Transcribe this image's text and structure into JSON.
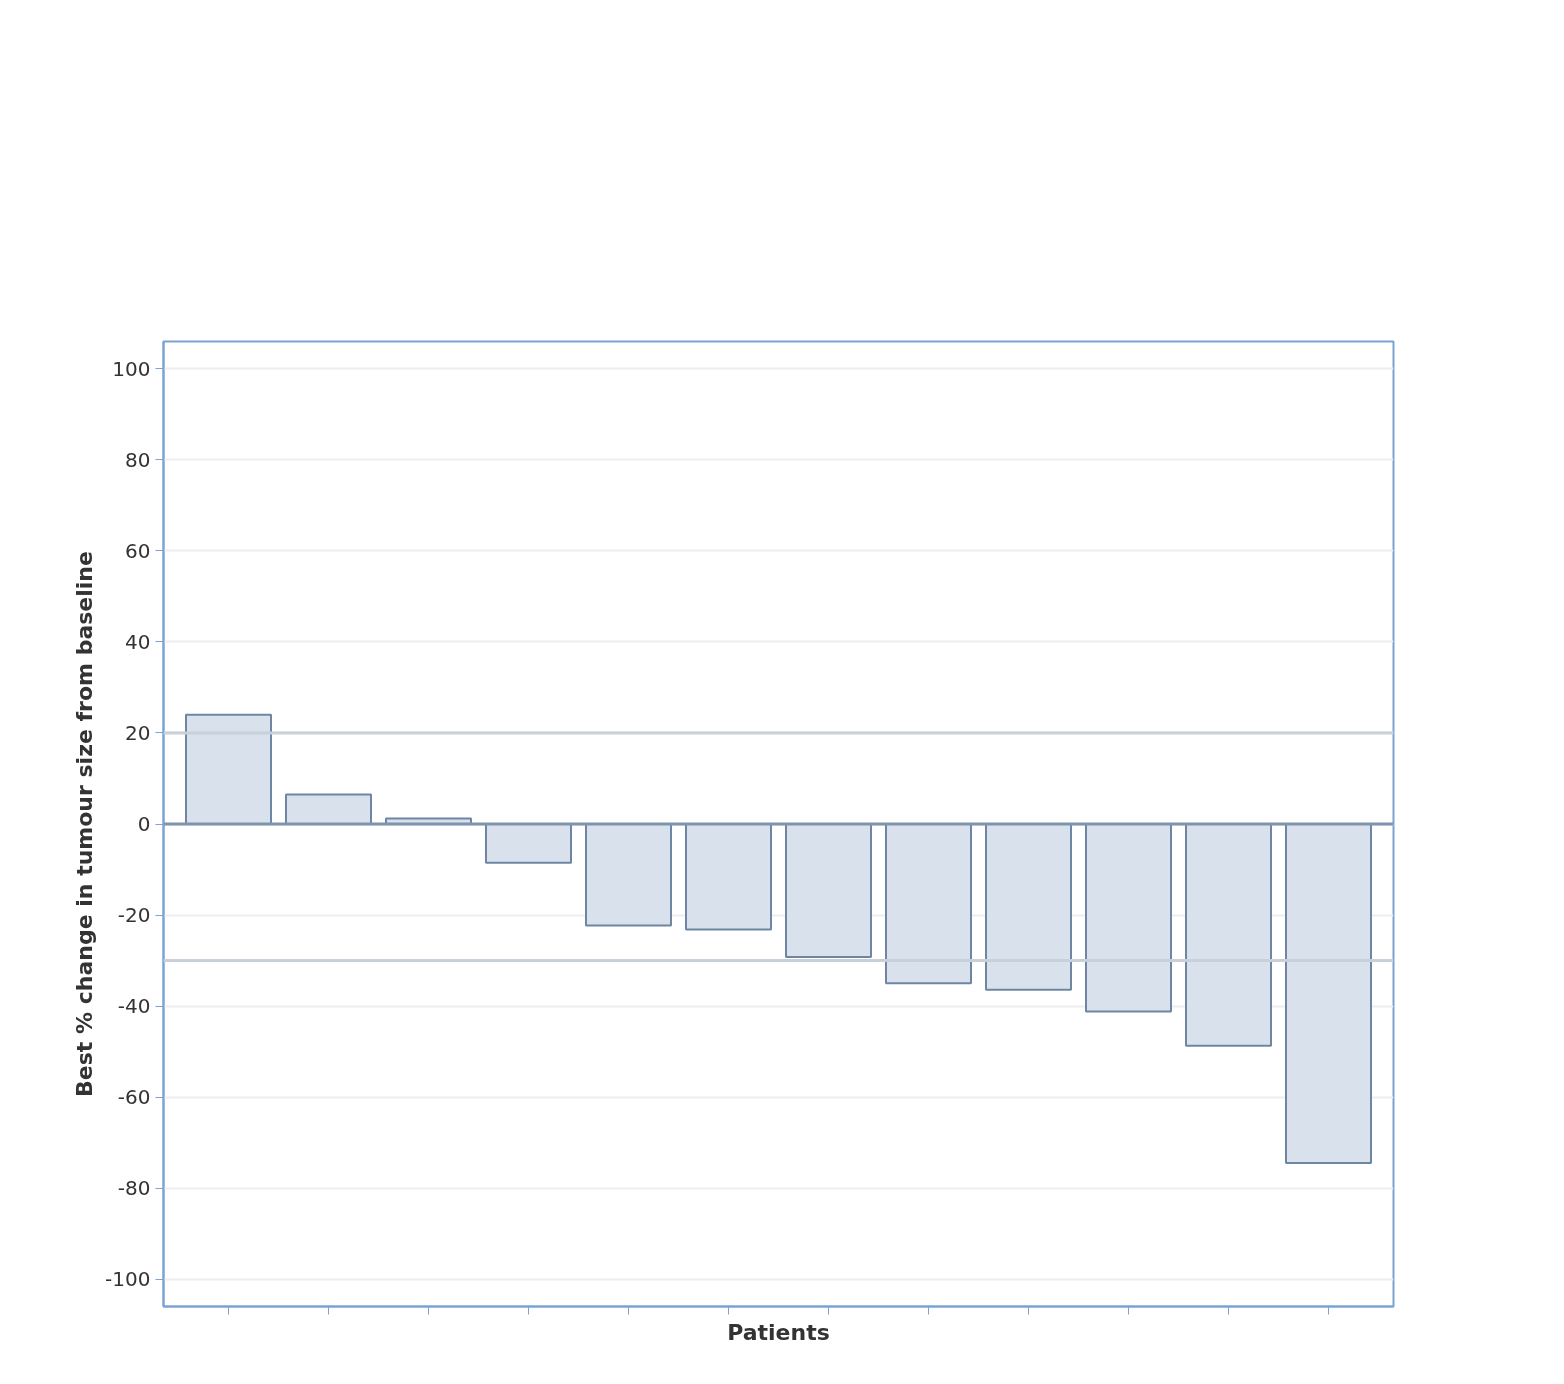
{
  "chart_data": {
    "type": "bar",
    "xlabel": "Patients",
    "ylabel": "Best % change in tumour size from baseline",
    "categories": [
      null,
      null,
      null,
      null,
      null,
      null,
      null,
      null,
      null,
      null,
      null,
      null
    ],
    "values": [
      24,
      6.5,
      1.2,
      -8.5,
      -22.3,
      -23.2,
      -29.2,
      -35,
      -36.4,
      -41.2,
      -48.7,
      -74.5
    ],
    "color": "#d9e2ec",
    "ylim": [
      -106,
      106
    ],
    "yticks": [
      -100,
      -80,
      -60,
      -40,
      -20,
      0,
      20,
      40,
      60,
      80,
      100
    ],
    "grid": "y",
    "ref_lines": [
      {
        "axis": "y",
        "value": 0,
        "color": "#7f93ad"
      },
      {
        "axis": "y",
        "value": 20,
        "color": "#c8d0da"
      },
      {
        "axis": "y",
        "value": -30,
        "color": "#c8d0da"
      }
    ]
  }
}
